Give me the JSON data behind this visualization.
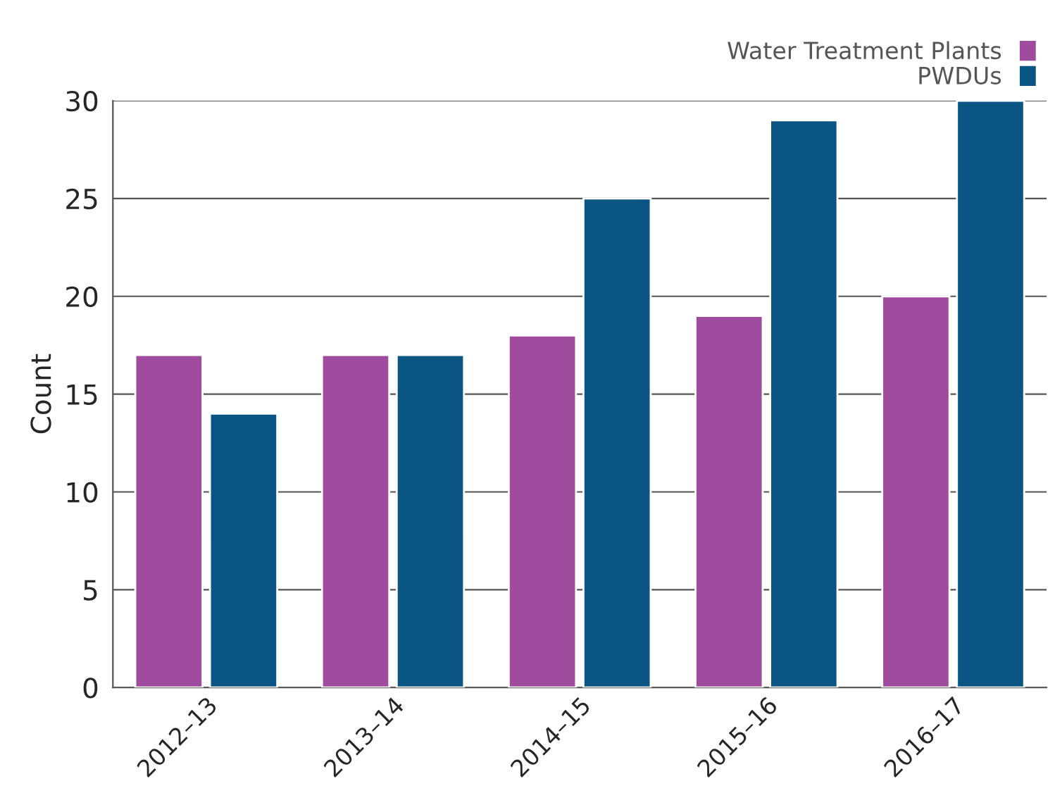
{
  "chart_data": {
    "type": "bar",
    "ylabel": "Count",
    "categories": [
      "2012–13",
      "2013–14",
      "2014–15",
      "2015–16",
      "2016–17"
    ],
    "series": [
      {
        "name": "Water Treatment Plants",
        "color": "#a04c9e",
        "values": [
          17,
          17,
          18,
          19,
          20
        ]
      },
      {
        "name": "PWDUs",
        "color": "#0b5585",
        "values": [
          14,
          17,
          25,
          29,
          30
        ]
      }
    ],
    "ylim": [
      0,
      30
    ],
    "yticks": [
      0,
      5,
      10,
      15,
      20,
      25,
      30
    ],
    "grid": "y",
    "legend": "top right"
  }
}
